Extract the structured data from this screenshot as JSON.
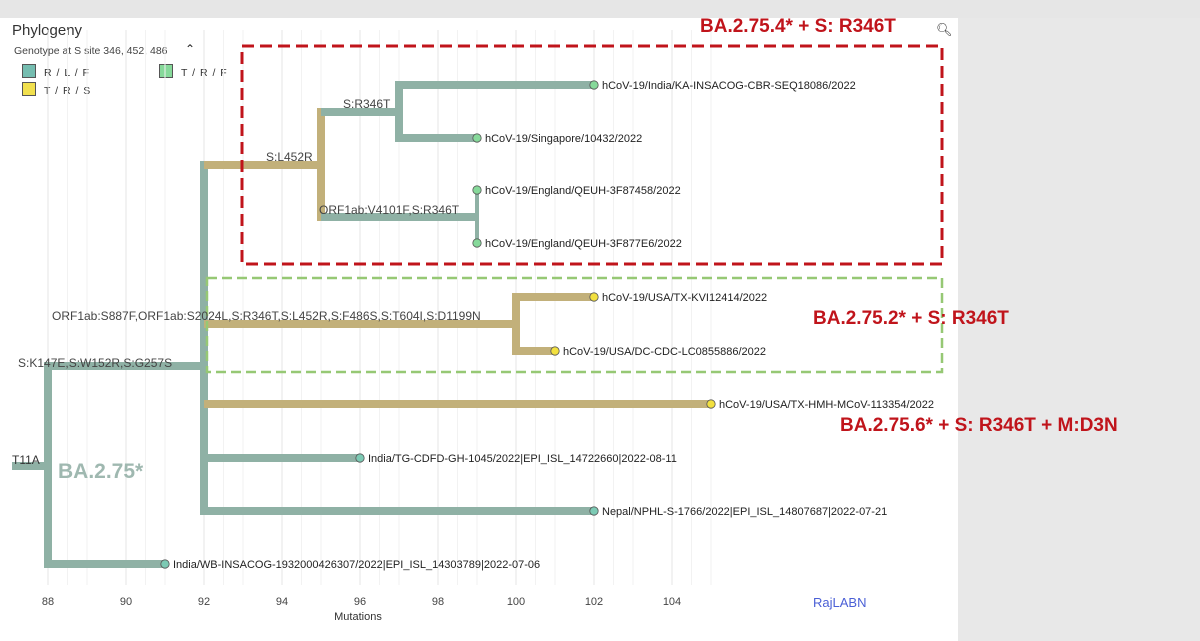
{
  "panel": {
    "title": "Phylogeny",
    "legend_title": "Genotype at S site 346, 452, 486",
    "legend_toggle_icon": "chevron-up-icon",
    "search_icon": "search-icon",
    "legend": [
      {
        "label": "R / L / F",
        "color": "#75bdb0"
      },
      {
        "label": "T / R / F",
        "color": "#86d99a"
      },
      {
        "label": "T / R / S",
        "color": "#f1e04e"
      }
    ]
  },
  "x_axis": {
    "title": "Mutations",
    "ticks": [
      88,
      90,
      92,
      94,
      96,
      98,
      100,
      102,
      104
    ]
  },
  "colors": {
    "teal": "#8fb1a5",
    "tan": "#c2b07a",
    "teal_dot": "#7ccab4",
    "green_dot": "#86d99a",
    "yellow_dot": "#f2e03f",
    "red_box": "#c0141b",
    "green_box": "#96c874"
  },
  "branch_labels": [
    {
      "id": "t11a",
      "text": "T11A"
    },
    {
      "id": "s-k147e",
      "text": "S:K147E,S:W152R,S:G257S"
    },
    {
      "id": "s-l452r",
      "text": "S:L452R"
    },
    {
      "id": "s-r346t",
      "text": "S:R346T"
    },
    {
      "id": "orf1ab-v4101f",
      "text": "ORF1ab:V4101F,S:R346T"
    },
    {
      "id": "orf1ab-s887f",
      "text": "ORF1ab:S887F,ORF1ab:S2024L,S:R346T,S:L452R,S:F486S,S:T604I,S:D1199N"
    }
  ],
  "clade_label": "BA.2.75*",
  "tips": [
    {
      "id": "india-ka",
      "label": "hCoV-19/India/KA-INSACOG-CBR-SEQ18086/2022",
      "x": 102,
      "color": "green"
    },
    {
      "id": "singapore",
      "label": "hCoV-19/Singapore/10432/2022",
      "x": 99,
      "color": "green"
    },
    {
      "id": "england-1",
      "label": "hCoV-19/England/QEUH-3F87458/2022",
      "x": 99,
      "color": "green"
    },
    {
      "id": "england-2",
      "label": "hCoV-19/England/QEUH-3F877E6/2022",
      "x": 99,
      "color": "green"
    },
    {
      "id": "usa-tx-kvi",
      "label": "hCoV-19/USA/TX-KVI12414/2022",
      "x": 102,
      "color": "yellow"
    },
    {
      "id": "usa-dc",
      "label": "hCoV-19/USA/DC-CDC-LC0855886/2022",
      "x": 101,
      "color": "yellow"
    },
    {
      "id": "usa-tx-hmh",
      "label": "hCoV-19/USA/TX-HMH-MCoV-113354/2022",
      "x": 105,
      "color": "yellow"
    },
    {
      "id": "india-tg",
      "label": "India/TG-CDFD-GH-1045/2022|EPI_ISL_14722660|2022-08-11",
      "x": 96,
      "color": "teal"
    },
    {
      "id": "nepal",
      "label": "Nepal/NPHL-S-1766/2022|EPI_ISL_14807687|2022-07-21",
      "x": 102,
      "color": "teal"
    },
    {
      "id": "india-wb",
      "label": "India/WB-INSACOG-1932000426307/2022|EPI_ISL_14303789|2022-07-06",
      "x": 91,
      "color": "teal"
    }
  ],
  "annotations": [
    {
      "id": "ann-ba2754",
      "text": "BA.2.75.4* + S: R346T"
    },
    {
      "id": "ann-ba2752",
      "text": "BA.2.75.2* + S: R346T"
    },
    {
      "id": "ann-ba2756",
      "text": "BA.2.75.6* + S: R346T + M:D3N"
    }
  ],
  "watermark": "RajLABN"
}
